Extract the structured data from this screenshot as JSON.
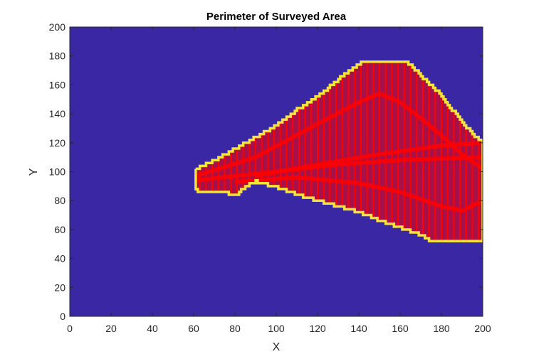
{
  "chart_data": {
    "type": "heatmap",
    "title": "Perimeter of Surveyed Area",
    "xlabel": "X",
    "ylabel": "Y",
    "xlim": [
      0,
      200
    ],
    "ylim": [
      0,
      200
    ],
    "x_ticks": [
      0,
      20,
      40,
      60,
      80,
      100,
      120,
      140,
      160,
      180,
      200
    ],
    "y_ticks": [
      0,
      20,
      40,
      60,
      80,
      100,
      120,
      140,
      160,
      180,
      200
    ],
    "grid": false,
    "colors": {
      "background": "#3a27a3",
      "perimeter": "#f5e43a",
      "survey_lines": "#ff0000"
    },
    "perimeter_upper": [
      [
        61,
        102
      ],
      [
        64,
        104
      ],
      [
        70,
        108
      ],
      [
        80,
        116
      ],
      [
        90,
        124
      ],
      [
        100,
        132
      ],
      [
        110,
        143
      ],
      [
        120,
        152
      ],
      [
        130,
        164
      ],
      [
        140,
        174
      ],
      [
        142,
        176
      ],
      [
        162,
        176
      ],
      [
        165,
        174
      ],
      [
        170,
        166
      ],
      [
        176,
        158
      ],
      [
        180,
        152
      ],
      [
        186,
        141
      ],
      [
        190,
        134
      ],
      [
        195,
        126
      ],
      [
        198,
        122
      ],
      [
        200,
        120
      ]
    ],
    "perimeter_lower": [
      [
        61,
        87
      ],
      [
        64,
        85
      ],
      [
        76,
        85
      ],
      [
        80,
        83
      ],
      [
        85,
        90
      ],
      [
        90,
        93
      ],
      [
        100,
        89
      ],
      [
        110,
        84
      ],
      [
        120,
        80
      ],
      [
        130,
        76
      ],
      [
        140,
        72
      ],
      [
        150,
        66
      ],
      [
        160,
        61
      ],
      [
        170,
        56
      ],
      [
        175,
        52
      ],
      [
        200,
        52
      ]
    ],
    "left_edge": [
      [
        61,
        87
      ],
      [
        61,
        102
      ]
    ],
    "right_edge": [
      [
        200,
        52
      ],
      [
        200,
        120
      ]
    ],
    "inner_curves": [
      [
        [
          61,
          97
        ],
        [
          90,
          110
        ],
        [
          120,
          133
        ],
        [
          140,
          148
        ],
        [
          150,
          154
        ],
        [
          160,
          148
        ],
        [
          170,
          137
        ],
        [
          180,
          125
        ],
        [
          190,
          112
        ],
        [
          200,
          102
        ]
      ],
      [
        [
          90,
          97
        ],
        [
          120,
          105
        ],
        [
          150,
          112
        ],
        [
          180,
          118
        ],
        [
          200,
          120
        ]
      ],
      [
        [
          61,
          94
        ],
        [
          100,
          100
        ],
        [
          130,
          105
        ],
        [
          160,
          108
        ],
        [
          200,
          110
        ]
      ],
      [
        [
          80,
          93
        ],
        [
          110,
          96
        ],
        [
          140,
          92
        ],
        [
          160,
          86
        ],
        [
          180,
          76
        ],
        [
          190,
          73
        ],
        [
          200,
          80
        ]
      ]
    ]
  }
}
